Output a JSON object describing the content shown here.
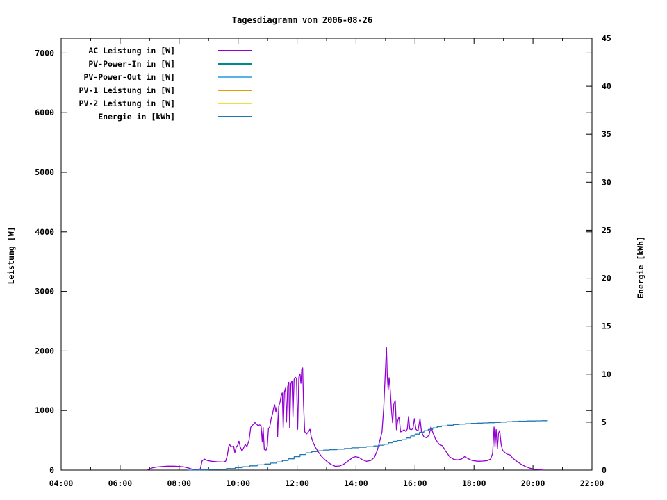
{
  "title": "Tagesdiagramm vom 2006-08-26",
  "chart_data": {
    "type": "line",
    "title": "Tagesdiagramm vom 2006-08-26",
    "background": "#ffffff",
    "border_color": "#000000",
    "grid": false,
    "legend_position": "top-left-inside",
    "x_axis": {
      "unit": "time",
      "range_hours": [
        4,
        22
      ],
      "major_tick_labels": [
        "04:00",
        "06:00",
        "08:00",
        "10:00",
        "12:00",
        "14:00",
        "16:00",
        "18:00",
        "20:00",
        "22:00"
      ],
      "major_tick_hours": [
        4,
        6,
        8,
        10,
        12,
        14,
        16,
        18,
        20,
        22
      ],
      "minor_tick_every_hours": 1
    },
    "y_axis_left": {
      "label": "Leistung [W]",
      "range": [
        0,
        7250
      ],
      "ticks": [
        0,
        1000,
        2000,
        3000,
        4000,
        5000,
        6000,
        7000
      ]
    },
    "y_axis_right": {
      "label": "Energie [kWh]",
      "range": [
        0,
        45
      ],
      "ticks": [
        0,
        5,
        10,
        15,
        20,
        25,
        30,
        35,
        40,
        45
      ]
    },
    "series": [
      {
        "name": "AC Leistung in [W]",
        "color": "#9400d3",
        "axis": "left",
        "style": "line",
        "points": [
          [
            6.9,
            0
          ],
          [
            7.0,
            20
          ],
          [
            7.1,
            40
          ],
          [
            7.25,
            52
          ],
          [
            7.4,
            60
          ],
          [
            7.6,
            66
          ],
          [
            7.8,
            67
          ],
          [
            8.0,
            62
          ],
          [
            8.15,
            55
          ],
          [
            8.3,
            38
          ],
          [
            8.45,
            15
          ],
          [
            8.6,
            10
          ],
          [
            8.72,
            20
          ],
          [
            8.78,
            155
          ],
          [
            8.86,
            185
          ],
          [
            8.95,
            162
          ],
          [
            9.1,
            148
          ],
          [
            9.3,
            140
          ],
          [
            9.5,
            135
          ],
          [
            9.58,
            150
          ],
          [
            9.64,
            260
          ],
          [
            9.68,
            395
          ],
          [
            9.71,
            431
          ],
          [
            9.75,
            400
          ],
          [
            9.8,
            393
          ],
          [
            9.85,
            405
          ],
          [
            9.89,
            291
          ],
          [
            9.94,
            390
          ],
          [
            9.99,
            420
          ],
          [
            10.03,
            490
          ],
          [
            10.07,
            395
          ],
          [
            10.13,
            320
          ],
          [
            10.18,
            365
          ],
          [
            10.24,
            430
          ],
          [
            10.3,
            395
          ],
          [
            10.37,
            500
          ],
          [
            10.43,
            720
          ],
          [
            10.5,
            760
          ],
          [
            10.57,
            800
          ],
          [
            10.63,
            770
          ],
          [
            10.68,
            745
          ],
          [
            10.73,
            760
          ],
          [
            10.78,
            740
          ],
          [
            10.82,
            465
          ],
          [
            10.85,
            720
          ],
          [
            10.89,
            345
          ],
          [
            10.95,
            335
          ],
          [
            10.99,
            400
          ],
          [
            11.03,
            700
          ],
          [
            11.07,
            720
          ],
          [
            11.12,
            860
          ],
          [
            11.17,
            950
          ],
          [
            11.21,
            1050
          ],
          [
            11.24,
            1100
          ],
          [
            11.28,
            980
          ],
          [
            11.31,
            1060
          ],
          [
            11.34,
            550
          ],
          [
            11.38,
            1080
          ],
          [
            11.42,
            1130
          ],
          [
            11.46,
            1250
          ],
          [
            11.5,
            1300
          ],
          [
            11.53,
            700
          ],
          [
            11.57,
            1310
          ],
          [
            11.61,
            1380
          ],
          [
            11.64,
            800
          ],
          [
            11.68,
            1400
          ],
          [
            11.72,
            1480
          ],
          [
            11.75,
            700
          ],
          [
            11.79,
            1450
          ],
          [
            11.83,
            1500
          ],
          [
            11.86,
            900
          ],
          [
            11.9,
            1520
          ],
          [
            11.94,
            1560
          ],
          [
            11.98,
            1540
          ],
          [
            12.02,
            680
          ],
          [
            12.06,
            1560
          ],
          [
            12.1,
            1620
          ],
          [
            12.13,
            1450
          ],
          [
            12.16,
            1695
          ],
          [
            12.19,
            1718
          ],
          [
            12.22,
            1095
          ],
          [
            12.26,
            645
          ],
          [
            12.32,
            605
          ],
          [
            12.38,
            640
          ],
          [
            12.44,
            690
          ],
          [
            12.48,
            560
          ],
          [
            12.54,
            470
          ],
          [
            12.62,
            385
          ],
          [
            12.72,
            305
          ],
          [
            12.82,
            235
          ],
          [
            12.92,
            185
          ],
          [
            13.02,
            142
          ],
          [
            13.15,
            95
          ],
          [
            13.3,
            64
          ],
          [
            13.45,
            70
          ],
          [
            13.6,
            105
          ],
          [
            13.75,
            160
          ],
          [
            13.88,
            210
          ],
          [
            13.98,
            226
          ],
          [
            14.1,
            212
          ],
          [
            14.22,
            172
          ],
          [
            14.35,
            148
          ],
          [
            14.5,
            162
          ],
          [
            14.62,
            215
          ],
          [
            14.72,
            330
          ],
          [
            14.8,
            480
          ],
          [
            14.88,
            640
          ],
          [
            14.94,
            1050
          ],
          [
            14.99,
            1620
          ],
          [
            15.03,
            2070
          ],
          [
            15.06,
            1580
          ],
          [
            15.09,
            1345
          ],
          [
            15.12,
            1555
          ],
          [
            15.16,
            1340
          ],
          [
            15.2,
            1010
          ],
          [
            15.24,
            790
          ],
          [
            15.28,
            1105
          ],
          [
            15.33,
            1170
          ],
          [
            15.37,
            672
          ],
          [
            15.41,
            828
          ],
          [
            15.46,
            895
          ],
          [
            15.51,
            640
          ],
          [
            15.57,
            655
          ],
          [
            15.63,
            678
          ],
          [
            15.69,
            648
          ],
          [
            15.74,
            695
          ],
          [
            15.78,
            905
          ],
          [
            15.82,
            688
          ],
          [
            15.88,
            678
          ],
          [
            15.93,
            700
          ],
          [
            15.98,
            868
          ],
          [
            16.03,
            688
          ],
          [
            16.1,
            655
          ],
          [
            16.17,
            866
          ],
          [
            16.22,
            638
          ],
          [
            16.3,
            558
          ],
          [
            16.4,
            542
          ],
          [
            16.48,
            598
          ],
          [
            16.54,
            728
          ],
          [
            16.6,
            635
          ],
          [
            16.7,
            515
          ],
          [
            16.82,
            432
          ],
          [
            16.93,
            408
          ],
          [
            17.05,
            310
          ],
          [
            17.18,
            222
          ],
          [
            17.32,
            178
          ],
          [
            17.45,
            172
          ],
          [
            17.58,
            188
          ],
          [
            17.68,
            226
          ],
          [
            17.78,
            198
          ],
          [
            17.9,
            168
          ],
          [
            18.02,
            155
          ],
          [
            18.15,
            148
          ],
          [
            18.3,
            152
          ],
          [
            18.45,
            160
          ],
          [
            18.56,
            185
          ],
          [
            18.63,
            280
          ],
          [
            18.68,
            728
          ],
          [
            18.71,
            385
          ],
          [
            18.75,
            688
          ],
          [
            18.79,
            352
          ],
          [
            18.83,
            618
          ],
          [
            18.87,
            668
          ],
          [
            18.92,
            430
          ],
          [
            18.97,
            332
          ],
          [
            19.05,
            292
          ],
          [
            19.12,
            268
          ],
          [
            19.22,
            255
          ],
          [
            19.32,
            198
          ],
          [
            19.45,
            148
          ],
          [
            19.6,
            98
          ],
          [
            19.75,
            58
          ],
          [
            19.9,
            32
          ],
          [
            20.05,
            16
          ],
          [
            20.2,
            6
          ],
          [
            20.35,
            2
          ]
        ]
      },
      {
        "name": "PV-Power-In in [W]",
        "color": "#008b8b",
        "axis": "left",
        "style": "line",
        "points": []
      },
      {
        "name": "PV-Power-Out in [W]",
        "color": "#56b4e9",
        "axis": "left",
        "style": "line",
        "points": []
      },
      {
        "name": "PV-1 Leistung in [W]",
        "color": "#dfa000",
        "axis": "left",
        "style": "line",
        "points": []
      },
      {
        "name": "PV-2 Leistung in [W]",
        "color": "#ede13f",
        "axis": "left",
        "style": "line",
        "points": []
      },
      {
        "name": "Energie in [kWh]",
        "color": "#1f78b4",
        "axis": "right",
        "style": "steps",
        "points": [
          [
            8.3,
            0.0
          ],
          [
            8.7,
            0.03
          ],
          [
            9.0,
            0.06
          ],
          [
            9.3,
            0.1
          ],
          [
            9.6,
            0.16
          ],
          [
            9.9,
            0.25
          ],
          [
            10.15,
            0.35
          ],
          [
            10.4,
            0.45
          ],
          [
            10.65,
            0.55
          ],
          [
            10.9,
            0.63
          ],
          [
            11.1,
            0.73
          ],
          [
            11.3,
            0.85
          ],
          [
            11.5,
            1.0
          ],
          [
            11.7,
            1.18
          ],
          [
            11.9,
            1.4
          ],
          [
            12.1,
            1.62
          ],
          [
            12.3,
            1.8
          ],
          [
            12.5,
            1.93
          ],
          [
            12.7,
            2.02
          ],
          [
            12.9,
            2.09
          ],
          [
            13.1,
            2.13
          ],
          [
            13.35,
            2.18
          ],
          [
            13.6,
            2.25
          ],
          [
            13.85,
            2.32
          ],
          [
            14.1,
            2.38
          ],
          [
            14.35,
            2.44
          ],
          [
            14.6,
            2.52
          ],
          [
            14.8,
            2.6
          ],
          [
            14.95,
            2.7
          ],
          [
            15.1,
            2.85
          ],
          [
            15.25,
            3.0
          ],
          [
            15.4,
            3.08
          ],
          [
            15.55,
            3.16
          ],
          [
            15.7,
            3.35
          ],
          [
            15.85,
            3.55
          ],
          [
            16.0,
            3.75
          ],
          [
            16.15,
            3.95
          ],
          [
            16.3,
            4.1
          ],
          [
            16.45,
            4.25
          ],
          [
            16.6,
            4.4
          ],
          [
            16.75,
            4.52
          ],
          [
            16.9,
            4.6
          ],
          [
            17.1,
            4.68
          ],
          [
            17.3,
            4.75
          ],
          [
            17.5,
            4.8
          ],
          [
            17.7,
            4.84
          ],
          [
            17.9,
            4.87
          ],
          [
            18.1,
            4.9
          ],
          [
            18.3,
            4.92
          ],
          [
            18.5,
            4.94
          ],
          [
            18.7,
            4.97
          ],
          [
            18.9,
            5.0
          ],
          [
            19.1,
            5.04
          ],
          [
            19.3,
            5.07
          ],
          [
            19.5,
            5.1
          ],
          [
            19.8,
            5.12
          ],
          [
            20.1,
            5.14
          ],
          [
            20.3,
            5.15
          ],
          [
            20.5,
            5.16
          ]
        ]
      }
    ]
  }
}
